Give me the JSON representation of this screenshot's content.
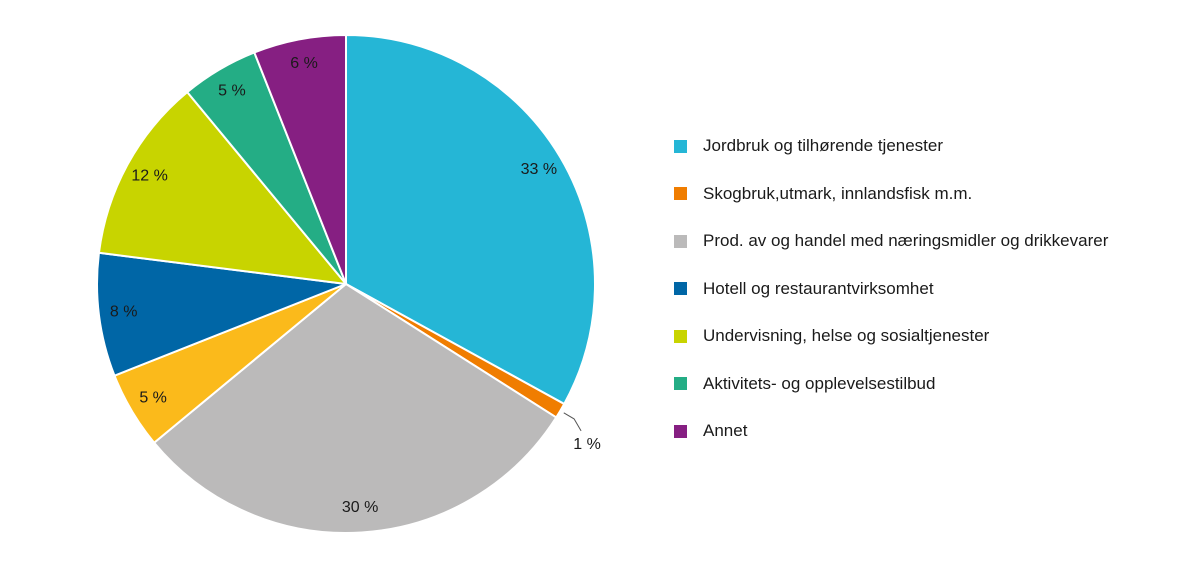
{
  "chart_data": {
    "type": "pie",
    "legend_position": "right",
    "start_angle_deg": 0,
    "direction": "clockwise",
    "slices": [
      {
        "label": "Jordbruk og tilhørende tjenester",
        "value": 33,
        "display": "33 %",
        "color": "#25b6d6"
      },
      {
        "label": "Skogbruk,utmark, innlandsfisk m.m.",
        "value": 1,
        "display": "1 %",
        "color": "#f07d00"
      },
      {
        "label": "Prod. av og handel med næringsmidler og drikkevarer",
        "value": 30,
        "display": "30 %",
        "color": "#bbbaba"
      },
      {
        "label": "",
        "value": 5,
        "display": "5 %",
        "color": "#fbba1b"
      },
      {
        "label": "Hotell og restaurantvirksomhet",
        "value": 8,
        "display": "8 %",
        "color": "#0066a6"
      },
      {
        "label": "Undervisning, helse og sosialtjenester",
        "value": 12,
        "display": "12 %",
        "color": "#c8d400"
      },
      {
        "label": "Aktivitets- og opplevelsestilbud",
        "value": 5,
        "display": "5 %",
        "color": "#24ad85"
      },
      {
        "label": "Annet",
        "value": 6,
        "display": "6 %",
        "color": "#861f82"
      }
    ]
  },
  "legend": {
    "items": [
      {
        "label": "Jordbruk og tilhørende tjenester",
        "color": "#25b6d6"
      },
      {
        "label": "Skogbruk,utmark, innlandsfisk m.m.",
        "color": "#f07d00"
      },
      {
        "label": "Prod. av og handel med næringsmidler og drikkevarer",
        "color": "#bbbaba"
      },
      {
        "label": "Hotell og restaurantvirksomhet",
        "color": "#0066a6"
      },
      {
        "label": "Undervisning, helse og sosialtjenester",
        "color": "#c8d400"
      },
      {
        "label": "Aktivitets- og opplevelsestilbud",
        "color": "#24ad85"
      },
      {
        "label": "Annet",
        "color": "#861f82"
      }
    ]
  }
}
